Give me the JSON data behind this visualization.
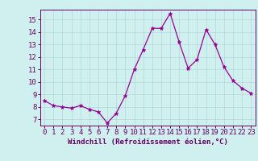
{
  "x": [
    0,
    1,
    2,
    3,
    4,
    5,
    6,
    7,
    8,
    9,
    10,
    11,
    12,
    13,
    14,
    15,
    16,
    17,
    18,
    19,
    20,
    21,
    22,
    23
  ],
  "y": [
    8.5,
    8.1,
    8.0,
    7.9,
    8.1,
    7.8,
    7.6,
    6.7,
    7.5,
    8.9,
    11.0,
    12.6,
    14.3,
    14.3,
    15.5,
    13.2,
    11.1,
    11.8,
    14.2,
    13.0,
    11.2,
    10.1,
    9.5,
    9.1
  ],
  "line_color": "#990099",
  "marker": "*",
  "marker_size": 3.5,
  "bg_color": "#cff0ee",
  "grid_color": "#b0d8d8",
  "xlabel": "Windchill (Refroidissement éolien,°C)",
  "xlabel_color": "#660066",
  "tick_color": "#660066",
  "ylim": [
    6.5,
    15.8
  ],
  "xlim": [
    -0.5,
    23.5
  ],
  "yticks": [
    7,
    8,
    9,
    10,
    11,
    12,
    13,
    14,
    15
  ],
  "xticks": [
    0,
    1,
    2,
    3,
    4,
    5,
    6,
    7,
    8,
    9,
    10,
    11,
    12,
    13,
    14,
    15,
    16,
    17,
    18,
    19,
    20,
    21,
    22,
    23
  ],
  "spine_color": "#660066",
  "font_size_label": 6.5,
  "font_size_tick": 6.5
}
